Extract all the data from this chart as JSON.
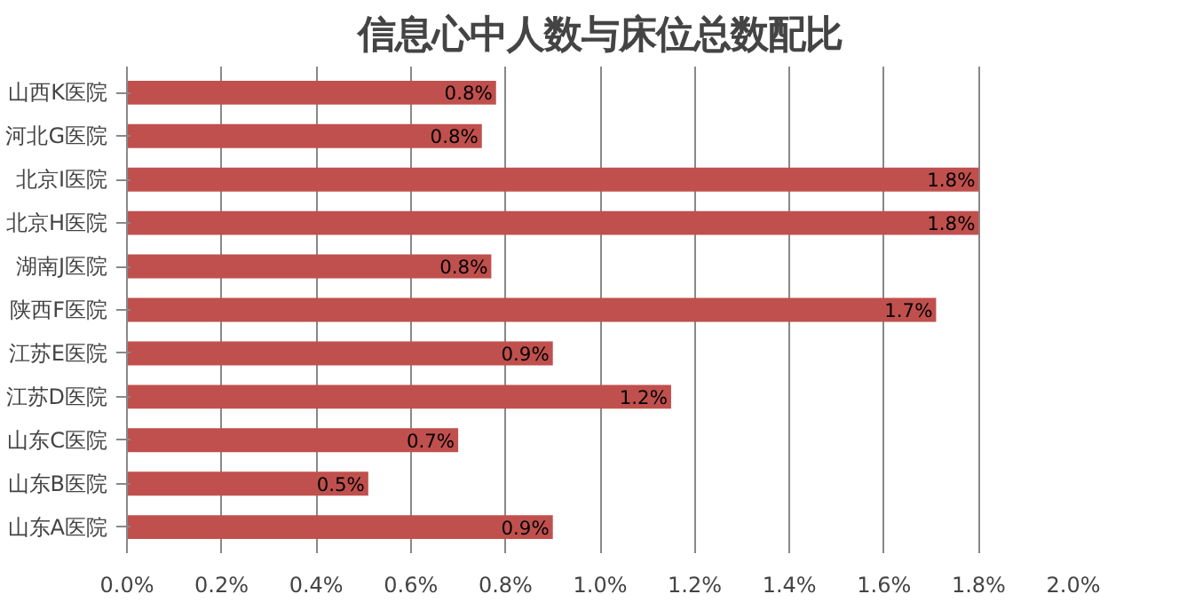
{
  "chart_data": {
    "type": "bar",
    "orientation": "horizontal",
    "title": "信息心中人数与床位总数配比",
    "categories": [
      "山西K医院",
      "河北G医院",
      "北京I医院",
      "北京H医院",
      "湖南J医院",
      "陕西F医院",
      "江苏E医院",
      "江苏D医院",
      "山东C医院",
      "山东B医院",
      "山东A医院"
    ],
    "values": [
      0.78,
      0.75,
      1.8,
      1.8,
      0.77,
      1.71,
      0.9,
      1.15,
      0.7,
      0.51,
      0.9
    ],
    "value_labels": [
      "0.8%",
      "0.8%",
      "1.8%",
      "1.8%",
      "0.8%",
      "1.7%",
      "0.9%",
      "1.2%",
      "0.7%",
      "0.5%",
      "0.9%"
    ],
    "color": "#c0504d",
    "xlim": [
      0,
      2.0
    ],
    "xticks": [
      {
        "value": 0,
        "label": "0.0%"
      },
      {
        "value": 0.2,
        "label": "0.2%"
      },
      {
        "value": 0.4,
        "label": "0.4%"
      },
      {
        "value": 0.6,
        "label": "0.6%"
      },
      {
        "value": 0.8,
        "label": "0.8%"
      },
      {
        "value": 1.0,
        "label": "1.0%"
      },
      {
        "value": 1.2,
        "label": "1.2%"
      },
      {
        "value": 1.4,
        "label": "1.4%"
      },
      {
        "value": 1.6,
        "label": "1.6%"
      },
      {
        "value": 1.8,
        "label": "1.8%"
      },
      {
        "value": 2.0,
        "label": "2.0%"
      }
    ],
    "grid": "x"
  }
}
